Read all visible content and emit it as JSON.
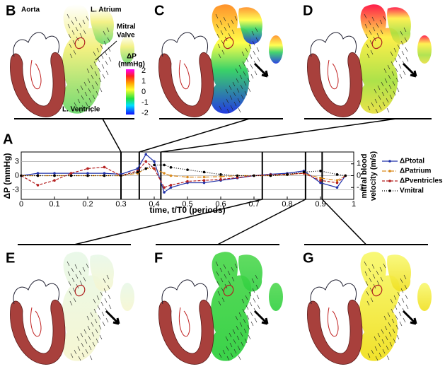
{
  "chart_data": {
    "type": "line",
    "panel_label": "A",
    "x": [
      0,
      0.05,
      0.1,
      0.15,
      0.2,
      0.25,
      0.3,
      0.35,
      0.375,
      0.4,
      0.43,
      0.45,
      0.5,
      0.55,
      0.6,
      0.65,
      0.7,
      0.75,
      0.8,
      0.85,
      0.9,
      0.95,
      0.975
    ],
    "xlim": [
      0,
      1
    ],
    "xticks": [
      0,
      0.1,
      0.2,
      0.3,
      0.4,
      0.5,
      0.6,
      0.7,
      0.8,
      0.9,
      1
    ],
    "ylim": [
      -5,
      5
    ],
    "yticks": [
      -3,
      0,
      3
    ],
    "y2lim": [
      -2,
      2
    ],
    "y2ticks": [
      -1,
      0,
      1
    ],
    "xlabel": "time, t/T0 (periods)",
    "ylabel": "ΔP (mmHg)",
    "y2label": [
      "mitral blood",
      "velocity (m/s)"
    ],
    "grid": true,
    "time_markers": [
      0.3,
      0.355,
      0.42,
      0.725,
      0.855,
      0.905
    ],
    "series": [
      {
        "name": "ΔPtotal",
        "color": "#2233aa",
        "dash": "",
        "values": [
          0,
          0.5,
          0.5,
          0.5,
          0.5,
          0.5,
          0.3,
          1.5,
          4.5,
          3,
          -3.5,
          -2.5,
          -1.5,
          -1.5,
          -1,
          -0.5,
          0,
          0.3,
          0.5,
          1,
          -1.5,
          -2.5,
          0
        ]
      },
      {
        "name": "ΔPatrium",
        "color": "#d98a1c",
        "dash": "6 2 1 2",
        "values": [
          0,
          0,
          0,
          0,
          0,
          0,
          0,
          0.5,
          1.5,
          1.5,
          0.5,
          0,
          -0.3,
          -0.3,
          -0.2,
          0,
          0,
          0,
          0.2,
          0.5,
          -0.5,
          -1,
          0
        ]
      },
      {
        "name": "ΔPventricles",
        "color": "#b52020",
        "dash": "4 2",
        "values": [
          0,
          -2,
          -1,
          0.5,
          1.5,
          1.8,
          0,
          1,
          3,
          1.5,
          -2.5,
          -2,
          -1.2,
          -1,
          -0.8,
          -0.4,
          0,
          0.2,
          0.3,
          0.5,
          -1,
          -1.5,
          0
        ]
      },
      {
        "name": "Vmitral",
        "color": "#000000",
        "dash": "1 2",
        "axis": "y2",
        "values": [
          0,
          0,
          0,
          0,
          0,
          0,
          0,
          0.3,
          0.6,
          0.9,
          0.9,
          0.7,
          0.5,
          0.3,
          0.1,
          0,
          0,
          0,
          0.1,
          0.3,
          0.4,
          0.1,
          0
        ]
      }
    ]
  },
  "panels": [
    {
      "label": "B"
    },
    {
      "label": "C"
    },
    {
      "label": "D"
    },
    {
      "label": "E"
    },
    {
      "label": "F"
    },
    {
      "label": "G"
    }
  ],
  "annotations": {
    "aorta": "Aorta",
    "atrium": "L. Atrium",
    "valve": [
      "Mitral",
      "Valve"
    ],
    "ventricle": "L. Ventricle"
  },
  "colorbar": {
    "title": [
      "ΔP",
      "(mmHg)"
    ],
    "ticks": [
      2,
      1,
      0,
      -1,
      -2
    ]
  }
}
